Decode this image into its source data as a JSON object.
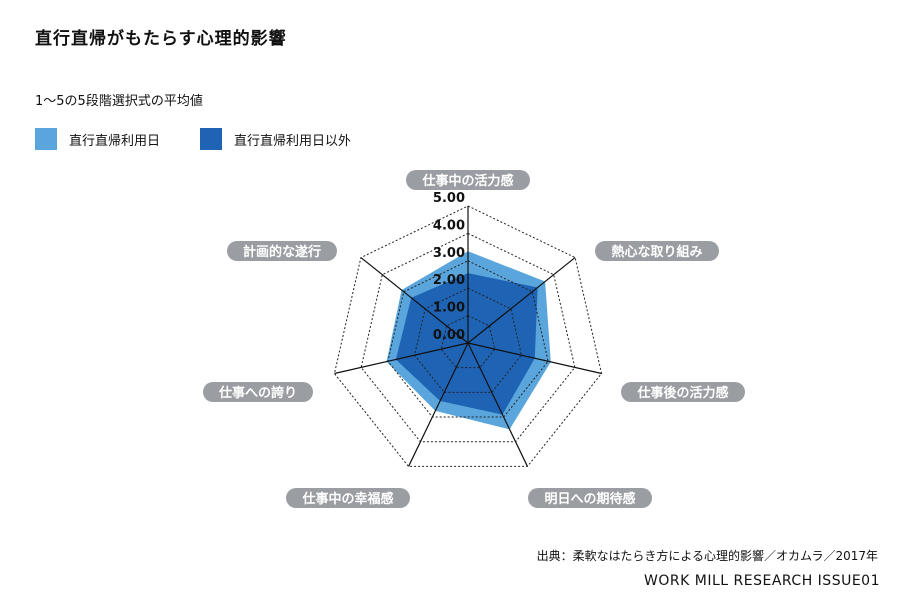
{
  "title": "直行直帰がもたらす心理的影響",
  "subtitle": "1～5の5段階選択式の平均値",
  "colors": {
    "series1": "#5aa6dc",
    "series2": "#1f63b4",
    "pill": "#9a9ea3"
  },
  "source": "出典：柔軟なはたらき方による心理的影響／オカムラ／2017年",
  "credit": "WORK MILL RESEARCH ISSUE01",
  "chart_data": {
    "type": "radar",
    "categories": [
      "仕事中の活力感",
      "熱心な取り組み",
      "仕事後の活力感",
      "明日への期待感",
      "仕事中の幸福感",
      "仕事への誇り",
      "計画的な遂行"
    ],
    "ticks": [
      "0.00",
      "1.00",
      "2.00",
      "3.00",
      "4.00",
      "5.00"
    ],
    "range": [
      0,
      5
    ],
    "series": [
      {
        "name": "直行直帰利用日",
        "values": [
          3.35,
          3.6,
          3.1,
          3.5,
          2.75,
          3.05,
          3.1
        ]
      },
      {
        "name": "直行直帰利用日以外",
        "values": [
          2.55,
          3.25,
          2.5,
          2.9,
          2.35,
          2.7,
          2.65
        ]
      }
    ]
  }
}
